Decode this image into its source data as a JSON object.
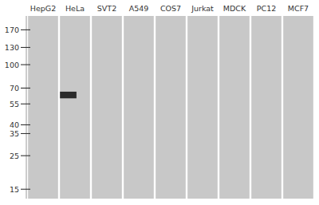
{
  "chart_data": {
    "type": "blot",
    "categories": [
      "HepG2",
      "HeLa",
      "SVT2",
      "A549",
      "COS7",
      "Jurkat",
      "MDCK",
      "PC12",
      "MCF7"
    ],
    "values": [
      null,
      63,
      null,
      null,
      null,
      null,
      null,
      null,
      null
    ],
    "color": "#1a1a1a",
    "log": "y",
    "ylim": [
      13,
      210
    ],
    "yticks": [
      170,
      130,
      100,
      70,
      55,
      40,
      35,
      25,
      15
    ],
    "grid": false
  }
}
